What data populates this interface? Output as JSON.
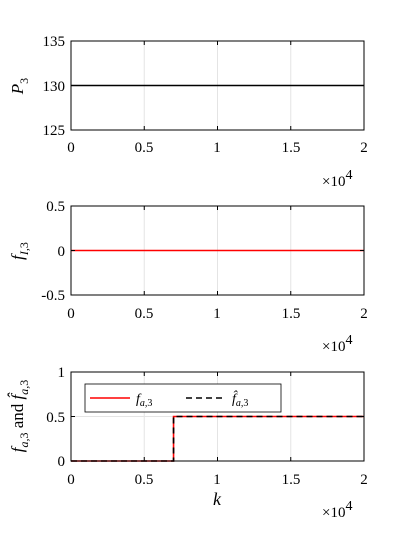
{
  "chart_data": [
    {
      "type": "line",
      "ylabel": "P_3",
      "xlabel": "",
      "xlim": [
        0,
        20000
      ],
      "ylim": [
        125,
        135
      ],
      "x_ticks": [
        "0",
        "0.5",
        "1",
        "1.5",
        "2"
      ],
      "y_ticks": [
        "135",
        "130",
        "125"
      ],
      "x_multiplier": "×10^4",
      "grid": "on",
      "series": [
        {
          "x": [
            0,
            20000
          ],
          "y": [
            130,
            130
          ],
          "color": "#000000",
          "style": "solid"
        }
      ]
    },
    {
      "type": "line",
      "ylabel": "f_{I,3}",
      "xlabel": "",
      "xlim": [
        0,
        20000
      ],
      "ylim": [
        -0.5,
        0.5
      ],
      "x_ticks": [
        "0",
        "0.5",
        "1",
        "1.5",
        "2"
      ],
      "y_ticks": [
        "0.5",
        "0",
        "-0.5"
      ],
      "x_multiplier": "×10^4",
      "grid": "on",
      "series": [
        {
          "x": [
            0,
            20000
          ],
          "y": [
            0,
            0
          ],
          "color": "#ff0000",
          "style": "solid"
        }
      ]
    },
    {
      "type": "line",
      "ylabel": "f_{a,3} and f̂_{a,3}",
      "xlabel": "k",
      "xlim": [
        0,
        20000
      ],
      "ylim": [
        0,
        1
      ],
      "x_ticks": [
        "0",
        "0.5",
        "1",
        "1.5",
        "2"
      ],
      "y_ticks": [
        "1",
        "0.5",
        "0"
      ],
      "x_multiplier": "×10^4",
      "grid": "on",
      "legend": "top-left",
      "series": [
        {
          "name": "f_{a,3}",
          "x": [
            0,
            7000,
            7000,
            20000
          ],
          "y": [
            0,
            0,
            0.5,
            0.5
          ],
          "color": "#ff0000",
          "style": "solid"
        },
        {
          "name": "f̂_{a,3}",
          "x": [
            0,
            7000,
            7000,
            20000
          ],
          "y": [
            0,
            0,
            0.5,
            0.5
          ],
          "color": "#000000",
          "style": "dashed"
        }
      ]
    }
  ]
}
